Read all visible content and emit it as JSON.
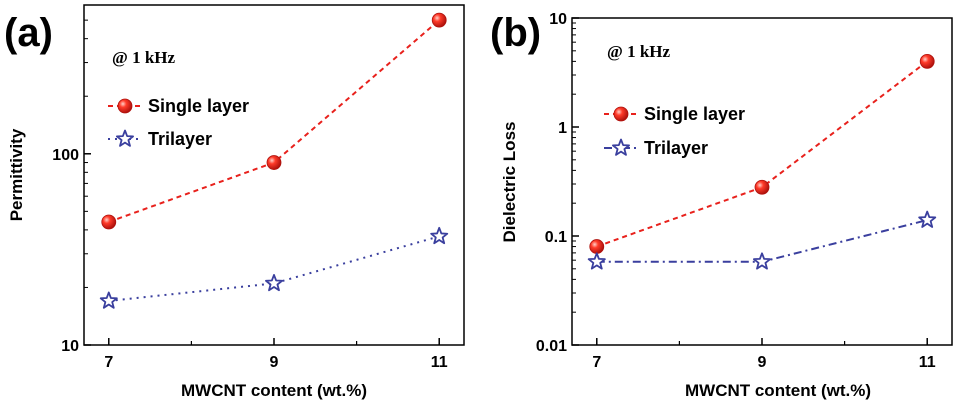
{
  "chart_data": [
    {
      "type": "line",
      "panel_label": "(a)",
      "annotation": "@ 1 kHz",
      "xlabel": "MWCNT content (wt.%)",
      "ylabel": "Permittivity",
      "x": [
        7,
        9,
        11
      ],
      "x_tick_labels": [
        "7",
        "9",
        "11"
      ],
      "xlim": [
        6.7,
        11.3
      ],
      "y_scale": "log",
      "ylim": [
        10,
        600
      ],
      "y_tick_labels": [
        "10",
        "100"
      ],
      "y_tick_values": [
        10,
        100
      ],
      "legend_position": "top-left",
      "series": [
        {
          "name": "Single layer",
          "values": [
            44,
            90,
            500
          ],
          "color": "#e8211c",
          "marker": "circle",
          "line_style": "dashed"
        },
        {
          "name": "Trilayer",
          "values": [
            17,
            21,
            37
          ],
          "color": "#3a3f9e",
          "marker": "star",
          "line_style": "dotted"
        }
      ]
    },
    {
      "type": "line",
      "panel_label": "(b)",
      "annotation": "@ 1 kHz",
      "xlabel": "MWCNT content (wt.%)",
      "ylabel": "Dielectric Loss",
      "x": [
        7,
        9,
        11
      ],
      "x_tick_labels": [
        "7",
        "9",
        "11"
      ],
      "xlim": [
        6.7,
        11.3
      ],
      "y_scale": "log",
      "ylim": [
        0.01,
        10
      ],
      "y_tick_labels": [
        "0.01",
        "0.1",
        "1",
        "10"
      ],
      "y_tick_values": [
        0.01,
        0.1,
        1,
        10
      ],
      "legend_position": "top-left",
      "series": [
        {
          "name": "Single layer",
          "values": [
            0.08,
            0.28,
            4.0
          ],
          "color": "#e8211c",
          "marker": "circle",
          "line_style": "dashed"
        },
        {
          "name": "Trilayer",
          "values": [
            0.058,
            0.058,
            0.14
          ],
          "color": "#3a3f9e",
          "marker": "star",
          "line_style": "dash-dot"
        }
      ]
    }
  ]
}
